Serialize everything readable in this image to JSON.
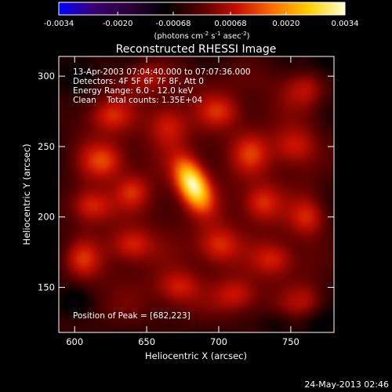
{
  "colorbar": {
    "min": -0.0034,
    "max": 0.0034,
    "tick_labels": [
      "-0.0034",
      "-0.0020",
      "-0.00068",
      "0.00068",
      "0.0020",
      "0.0034"
    ],
    "tick_values": [
      -0.0034,
      -0.002,
      -0.00068,
      0.00068,
      0.002,
      0.0034
    ],
    "unit_label_main": "(photons cm",
    "unit_sup1": "-2",
    "unit_mid1": " s",
    "unit_sup2": "-1",
    "unit_mid2": " asec",
    "unit_sup3": "-2",
    "unit_end": ")",
    "colormap": [
      "#0000ff",
      "#3a0070",
      "#2a0038",
      "#000000",
      "#5a0000",
      "#c81000",
      "#ff7000",
      "#ffd000",
      "#ffffd0"
    ]
  },
  "chart_data": {
    "type": "heatmap",
    "title": "Reconstructed RHESSI Image",
    "xlabel": "Heliocentric X (arcsec)",
    "ylabel": "Heliocentric Y (arcsec)",
    "xlim": [
      589,
      780
    ],
    "ylim": [
      118,
      314
    ],
    "x_ticks": [
      600,
      650,
      700,
      750
    ],
    "y_ticks": [
      150,
      200,
      250,
      300
    ],
    "peak": {
      "x": 682,
      "y": 223,
      "value": 0.0034
    },
    "sources": [
      {
        "x": 682,
        "y": 223,
        "sx": 7,
        "sy": 13,
        "amp": 1.0,
        "angle": -25
      },
      {
        "x": 620,
        "y": 240,
        "sx": 10,
        "sy": 9,
        "amp": 0.38
      },
      {
        "x": 612,
        "y": 208,
        "sx": 10,
        "sy": 8,
        "amp": 0.35
      },
      {
        "x": 640,
        "y": 180,
        "sx": 10,
        "sy": 8,
        "amp": 0.33
      },
      {
        "x": 605,
        "y": 170,
        "sx": 9,
        "sy": 9,
        "amp": 0.3
      },
      {
        "x": 625,
        "y": 272,
        "sx": 10,
        "sy": 8,
        "amp": 0.3
      },
      {
        "x": 665,
        "y": 265,
        "sx": 9,
        "sy": 10,
        "amp": 0.3
      },
      {
        "x": 700,
        "y": 275,
        "sx": 10,
        "sy": 8,
        "amp": 0.3
      },
      {
        "x": 722,
        "y": 245,
        "sx": 9,
        "sy": 10,
        "amp": 0.32
      },
      {
        "x": 752,
        "y": 250,
        "sx": 10,
        "sy": 9,
        "amp": 0.3
      },
      {
        "x": 730,
        "y": 210,
        "sx": 9,
        "sy": 9,
        "amp": 0.35
      },
      {
        "x": 762,
        "y": 200,
        "sx": 9,
        "sy": 9,
        "amp": 0.3
      },
      {
        "x": 700,
        "y": 180,
        "sx": 10,
        "sy": 9,
        "amp": 0.35
      },
      {
        "x": 738,
        "y": 170,
        "sx": 10,
        "sy": 8,
        "amp": 0.3
      },
      {
        "x": 672,
        "y": 150,
        "sx": 10,
        "sy": 8,
        "amp": 0.3
      },
      {
        "x": 712,
        "y": 145,
        "sx": 10,
        "sy": 8,
        "amp": 0.28
      },
      {
        "x": 640,
        "y": 218,
        "sx": 8,
        "sy": 8,
        "amp": 0.3
      },
      {
        "x": 650,
        "y": 300,
        "sx": 10,
        "sy": 7,
        "amp": 0.22
      },
      {
        "x": 760,
        "y": 290,
        "sx": 10,
        "sy": 8,
        "amp": 0.22
      },
      {
        "x": 760,
        "y": 140,
        "sx": 10,
        "sy": 8,
        "amp": 0.18
      },
      {
        "x": 600,
        "y": 140,
        "sx": 9,
        "sy": 8,
        "amp": -0.22
      },
      {
        "x": 605,
        "y": 300,
        "sx": 10,
        "sy": 10,
        "amp": -0.25
      },
      {
        "x": 775,
        "y": 310,
        "sx": 8,
        "sy": 8,
        "amp": -0.2
      },
      {
        "x": 770,
        "y": 125,
        "sx": 9,
        "sy": 8,
        "amp": -0.18
      },
      {
        "x": 740,
        "y": 125,
        "sx": 8,
        "sy": 6,
        "amp": -0.12
      }
    ]
  },
  "annotations": {
    "time": "13-Apr-2003 07:04:40.000 to 07:07:36.000",
    "detectors": "Detectors: 4F 5F 6F 7F 8F, Att 0",
    "energy": "Energy Range: 6.0 - 12.0 keV",
    "clean": "Clean    Total counts: 1.35E+04",
    "peak": "Position of Peak = [682,223]"
  },
  "footer": {
    "date": "24-May-2013 02:46"
  }
}
